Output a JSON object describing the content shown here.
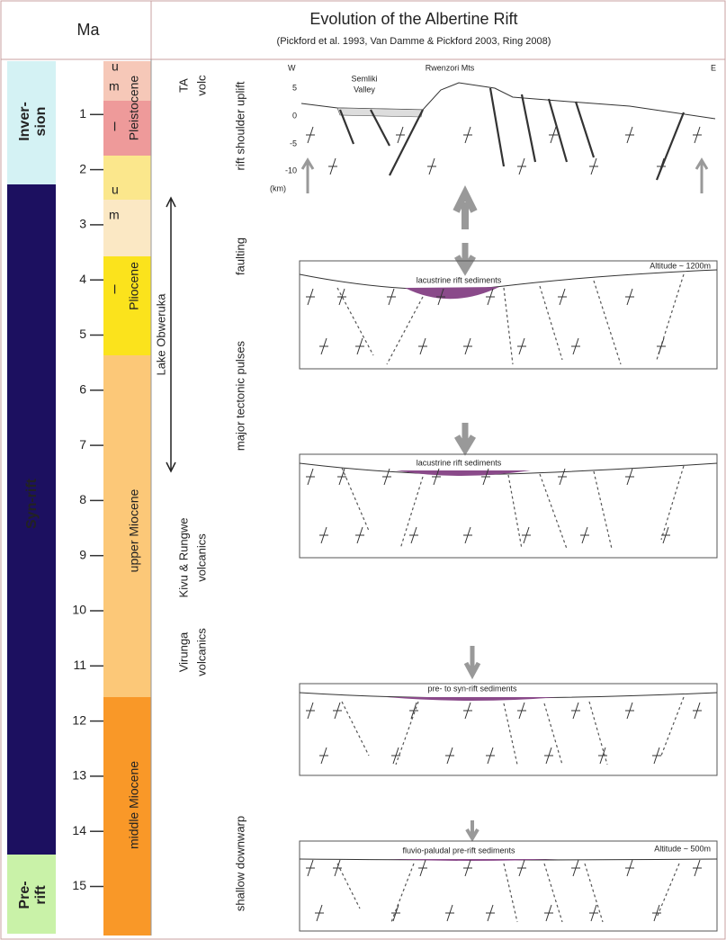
{
  "header": {
    "ma_label": "Ma",
    "title": "Evolution of the Albertine Rift",
    "subtitle": "(Pickford et al. 1993, Van Damme & Pickford 2003, Ring 2008)"
  },
  "phases": [
    [
      "Inver-",
      "sion"
    ],
    [
      "Syn-rift"
    ],
    [
      "Pre-",
      "rift"
    ]
  ],
  "ma_ticks": [
    1,
    2,
    3,
    4,
    5,
    6,
    7,
    8,
    9,
    10,
    11,
    12,
    13,
    14,
    15
  ],
  "epochs": [
    "Pleistocene",
    "Pliocene",
    "upper Miocene",
    "middle Miocene"
  ],
  "subepochs": [
    "u",
    "m",
    "l",
    "u",
    "m",
    "l"
  ],
  "events": [
    [
      "TA",
      "volc"
    ],
    [
      "Lake Obweruka"
    ],
    [
      "Kivu & Rungwe",
      "volcanics"
    ],
    [
      "Virunga",
      "volcanics"
    ]
  ],
  "processes": [
    "rift shoulder uplift",
    "faulting",
    "major tectonic pulses",
    "shallow downwarp"
  ],
  "sections": [
    {
      "west": "W",
      "east": "E",
      "peak": "Rwenzori Mts",
      "valley": [
        "Semliki",
        "Valley"
      ],
      "axis": [
        "5",
        "0",
        "-5",
        "-10"
      ],
      "unit": "(km)"
    },
    {
      "label": "lacustrine rift sediments",
      "altitude": "Altitude ~ 1200m"
    },
    {
      "label": "lacustrine rift sediments"
    },
    {
      "label": "pre- to syn-rift sediments"
    },
    {
      "label": "fluvio-paludal pre-rift sediments",
      "altitude": "Altitude ~ 500m"
    }
  ]
}
